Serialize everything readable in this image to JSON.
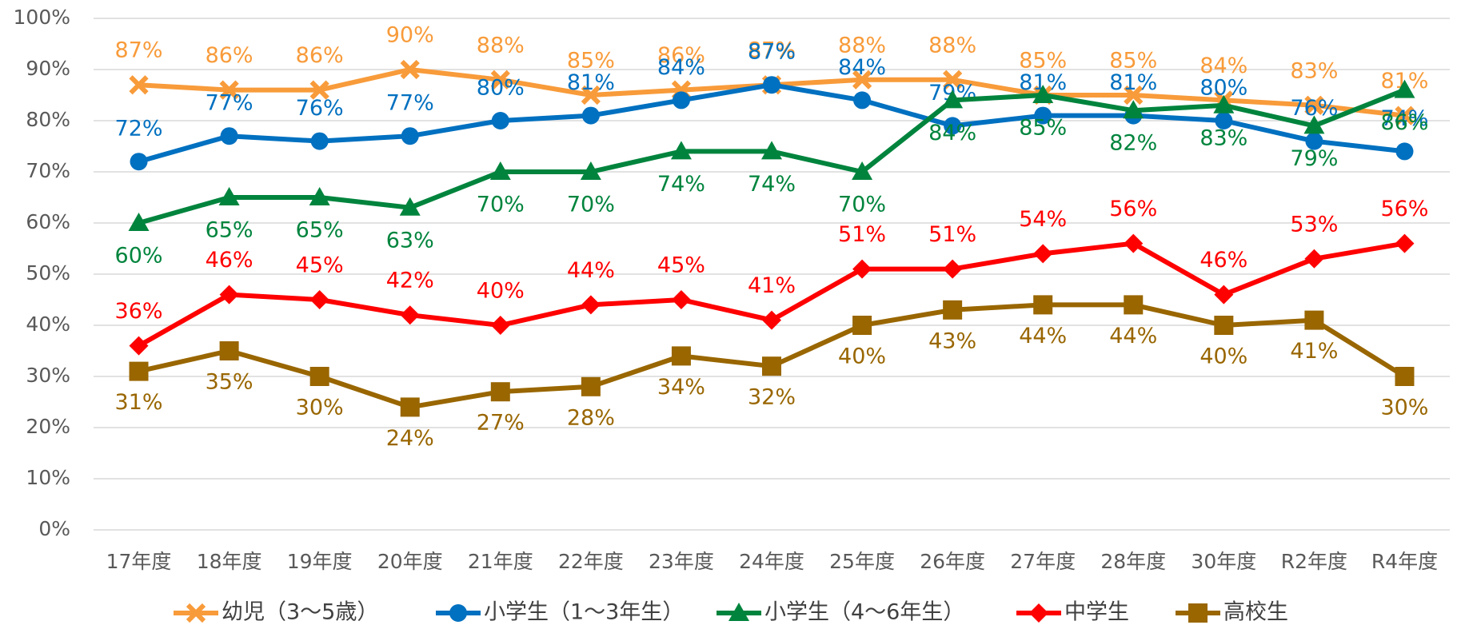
{
  "chart_data": {
    "type": "line",
    "categories": [
      "17年度",
      "18年度",
      "19年度",
      "20年度",
      "21年度",
      "22年度",
      "23年度",
      "24年度",
      "25年度",
      "26年度",
      "27年度",
      "28年度",
      "30年度",
      "R2年度",
      "R4年度"
    ],
    "ylim": [
      0,
      100
    ],
    "yticks": [
      {
        "value": 0,
        "label": "0%"
      },
      {
        "value": 10,
        "label": "10%"
      },
      {
        "value": 20,
        "label": "20%"
      },
      {
        "value": 30,
        "label": "30%"
      },
      {
        "value": 40,
        "label": "40%"
      },
      {
        "value": 50,
        "label": "50%"
      },
      {
        "value": 60,
        "label": "60%"
      },
      {
        "value": 70,
        "label": "70%"
      },
      {
        "value": 80,
        "label": "80%"
      },
      {
        "value": 90,
        "label": "90%"
      },
      {
        "value": 100,
        "label": "100%"
      }
    ],
    "grid": true,
    "legend": "bottom",
    "series": [
      {
        "name": "幼児（3～5歳）",
        "color": "#f89b3a",
        "marker": "x",
        "values": [
          87,
          86,
          86,
          90,
          88,
          85,
          86,
          87,
          88,
          88,
          85,
          85,
          84,
          83,
          81
        ],
        "value_labels": [
          "87%",
          "86%",
          "86%",
          "90%",
          "88%",
          "85%",
          "86%",
          "87%",
          "88%",
          "88%",
          "85%",
          "85%",
          "84%",
          "83%",
          "81%"
        ]
      },
      {
        "name": "小学生（1～3年生）",
        "color": "#0070c0",
        "marker": "circle",
        "values": [
          72,
          77,
          76,
          77,
          80,
          81,
          84,
          87,
          84,
          79,
          81,
          81,
          80,
          76,
          74
        ],
        "value_labels": [
          "72%",
          "77%",
          "76%",
          "77%",
          "80%",
          "81%",
          "84%",
          "87%",
          "84%",
          "79%",
          "81%",
          "81%",
          "80%",
          "76%",
          "74%"
        ]
      },
      {
        "name": "小学生（4～6年生）",
        "color": "#00843d",
        "marker": "triangle",
        "values": [
          60,
          65,
          65,
          63,
          70,
          70,
          74,
          74,
          70,
          84,
          85,
          82,
          83,
          79,
          86
        ],
        "value_labels": [
          "60%",
          "65%",
          "65%",
          "63%",
          "70%",
          "70%",
          "74%",
          "74%",
          "70%",
          "84%",
          "85%",
          "82%",
          "83%",
          "79%",
          "86%"
        ]
      },
      {
        "name": "中学生",
        "color": "#ff0000",
        "marker": "diamond",
        "values": [
          36,
          46,
          45,
          42,
          40,
          44,
          45,
          41,
          51,
          51,
          54,
          56,
          46,
          53,
          56
        ],
        "value_labels": [
          "36%",
          "46%",
          "45%",
          "42%",
          "40%",
          "44%",
          "45%",
          "41%",
          "51%",
          "51%",
          "54%",
          "56%",
          "46%",
          "53%",
          "56%"
        ]
      },
      {
        "name": "高校生",
        "color": "#996600",
        "marker": "square",
        "values": [
          31,
          35,
          30,
          24,
          27,
          28,
          34,
          32,
          40,
          43,
          44,
          44,
          40,
          41,
          30
        ],
        "value_labels": [
          "31%",
          "35%",
          "30%",
          "24%",
          "27%",
          "28%",
          "34%",
          "32%",
          "40%",
          "43%",
          "44%",
          "44%",
          "40%",
          "41%",
          "30%"
        ]
      }
    ]
  }
}
